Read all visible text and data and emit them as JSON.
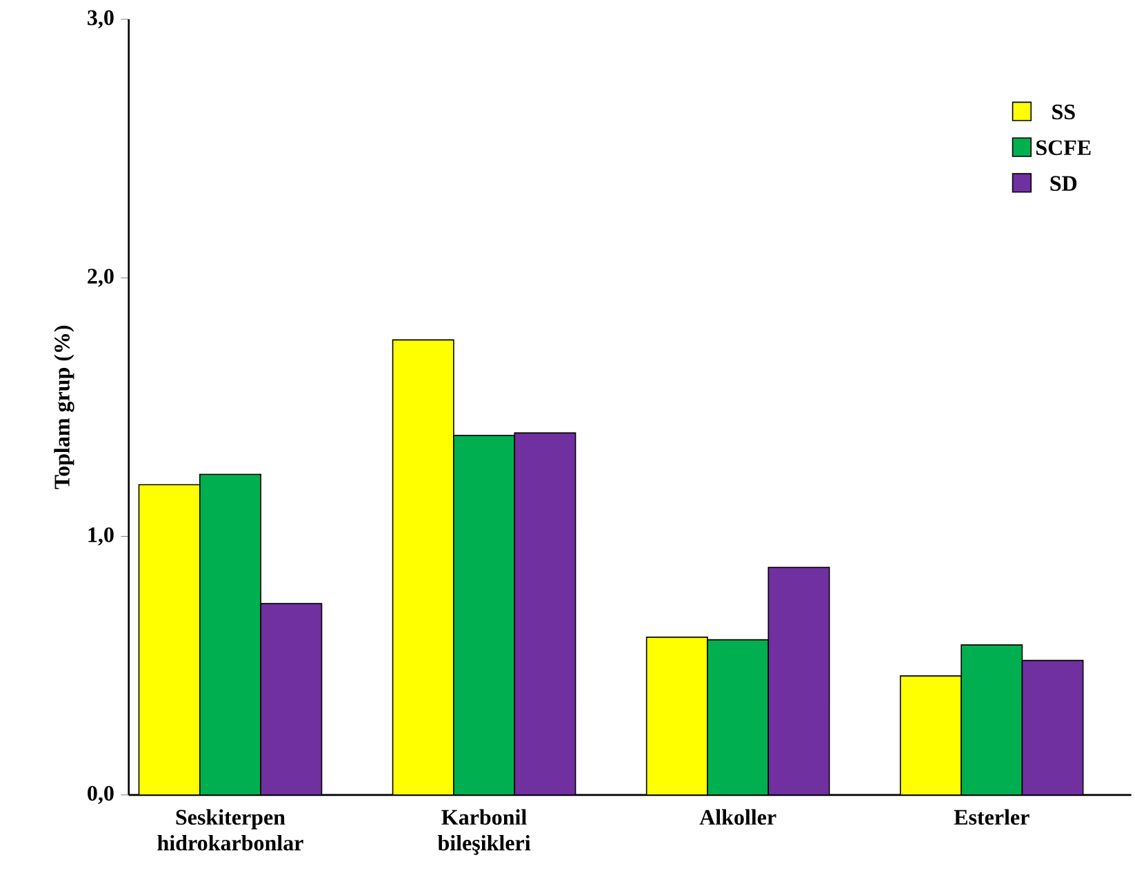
{
  "chart_data": {
    "type": "bar",
    "ylabel": "Toplam grup (%)",
    "categories": [
      "Seskiterpen hidrokarbonlar",
      "Karbonil bileşikleri",
      "Alkoller",
      "Esterler"
    ],
    "series": [
      {
        "name": "SS",
        "color": "#ffff00",
        "values": [
          1.2,
          1.76,
          0.61,
          0.46
        ]
      },
      {
        "name": "SCFE",
        "color": "#00b050",
        "values": [
          1.24,
          1.39,
          0.6,
          0.58
        ]
      },
      {
        "name": "SD",
        "color": "#7030a0",
        "values": [
          0.74,
          1.4,
          0.88,
          0.52
        ]
      }
    ],
    "ylim": [
      0,
      3
    ],
    "yticks": [
      {
        "value": 0,
        "label": "0,0"
      },
      {
        "value": 1,
        "label": "1,0"
      },
      {
        "value": 2,
        "label": "2,0"
      },
      {
        "value": 3,
        "label": "3,0"
      }
    ],
    "grid": false,
    "legend": "top right"
  }
}
